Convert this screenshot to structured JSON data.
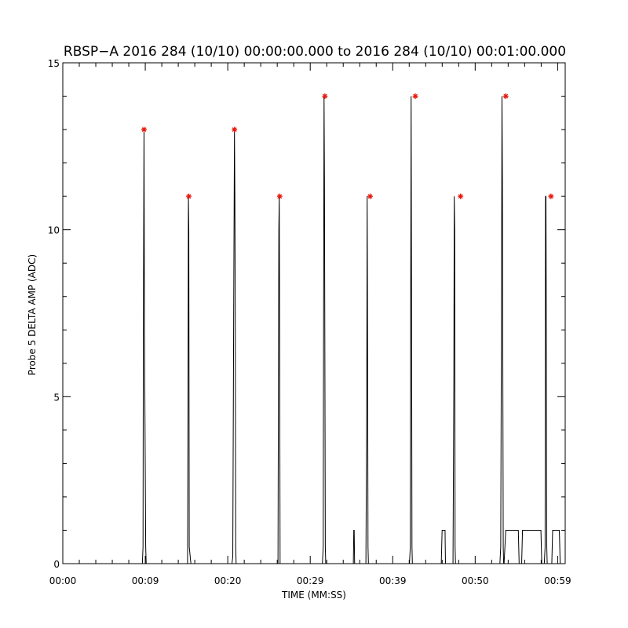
{
  "chart_data": {
    "type": "line",
    "title": "RBSP−A 2016 284 (10/10) 00:00:00.000 to 2016 284 (10/10) 00:01:00.000",
    "xlabel": "TIME (MM:SS)",
    "ylabel": "Probe 5 DELTA AMP (ADC)",
    "xlim": [
      0,
      60
    ],
    "ylim": [
      0,
      15
    ],
    "x_tick_values": [
      0,
      9.85,
      19.7,
      29.55,
      39.4,
      49.25,
      59.1
    ],
    "x_tick_labels": [
      "00:00",
      "00:09",
      "00:20",
      "00:29",
      "00:39",
      "00:50",
      "00:59"
    ],
    "y_tick_values": [
      0,
      5,
      10,
      15
    ],
    "y_tick_labels": [
      "0",
      "5",
      "10",
      "15"
    ],
    "grid": false,
    "series": [
      {
        "color": "#000000",
        "style": "line",
        "x": [
          0,
          9.5,
          9.58,
          9.62,
          9.7,
          9.75,
          9.8,
          9.9,
          9.96,
          10.02,
          10.1,
          14.9,
          14.95,
          15.0,
          15.05,
          15.1,
          15.3,
          20.2,
          20.3,
          20.4,
          20.5,
          20.55,
          20.6,
          20.65,
          20.7,
          20.8,
          25.7,
          25.8,
          25.85,
          25.9,
          25.95,
          26.0,
          31.0,
          31.1,
          31.15,
          31.2,
          31.25,
          31.3,
          31.35,
          31.4,
          34.7,
          34.75,
          34.8,
          34.85,
          36.2,
          36.3,
          36.35,
          36.4,
          36.45,
          36.5,
          36.55,
          41.4,
          41.5,
          41.55,
          41.6,
          41.65,
          41.7,
          41.75,
          41.8,
          45.2,
          45.3,
          45.35,
          45.6,
          45.65,
          45.7,
          46.6,
          46.7,
          46.75,
          46.8,
          46.85,
          46.9,
          46.95,
          52.2,
          52.3,
          52.4,
          52.45,
          52.5,
          52.55,
          52.6,
          52.65,
          52.7,
          52.9,
          53.0,
          54.4,
          54.5,
          54.8,
          54.9,
          55.0,
          57.0,
          57.1,
          57.2,
          57.5,
          57.6,
          57.65,
          57.7,
          57.75,
          57.8,
          57.85,
          57.9,
          58.4,
          58.5,
          58.6,
          59.3,
          59.4,
          60
        ],
        "y": [
          0,
          0,
          0.5,
          7,
          13,
          7,
          5,
          0.5,
          0,
          0,
          0,
          0,
          4.5,
          11,
          10,
          0.5,
          0,
          0,
          0.2,
          7,
          13,
          11,
          7,
          0.5,
          0,
          0,
          0,
          10,
          11,
          6.5,
          0,
          0,
          0,
          0.5,
          8,
          14,
          11.5,
          6,
          0.5,
          0,
          0,
          1,
          1,
          0,
          0,
          5,
          11,
          6.5,
          0.5,
          0,
          0,
          0,
          0.5,
          8,
          14,
          8,
          0.5,
          0,
          0,
          0,
          1,
          1,
          1,
          1,
          0,
          0,
          5.5,
          11,
          10,
          0.5,
          0,
          0,
          0,
          0.5,
          8.5,
          14,
          11.5,
          6,
          0.5,
          0,
          0,
          1,
          1,
          1,
          0,
          0,
          1,
          1,
          1,
          1,
          0,
          0,
          0.5,
          11,
          11,
          6.5,
          0.5,
          0,
          0,
          0,
          1,
          1,
          1,
          0,
          0
        ]
      },
      {
        "color": "#e8180c",
        "style": "markers",
        "marker": "asterisk",
        "x": [
          9.7,
          15.05,
          20.5,
          25.9,
          31.3,
          36.7,
          42.1,
          47.5,
          52.9,
          58.3
        ],
        "y": [
          13,
          11,
          13,
          11,
          14,
          11,
          14,
          11,
          14,
          11
        ]
      }
    ]
  }
}
